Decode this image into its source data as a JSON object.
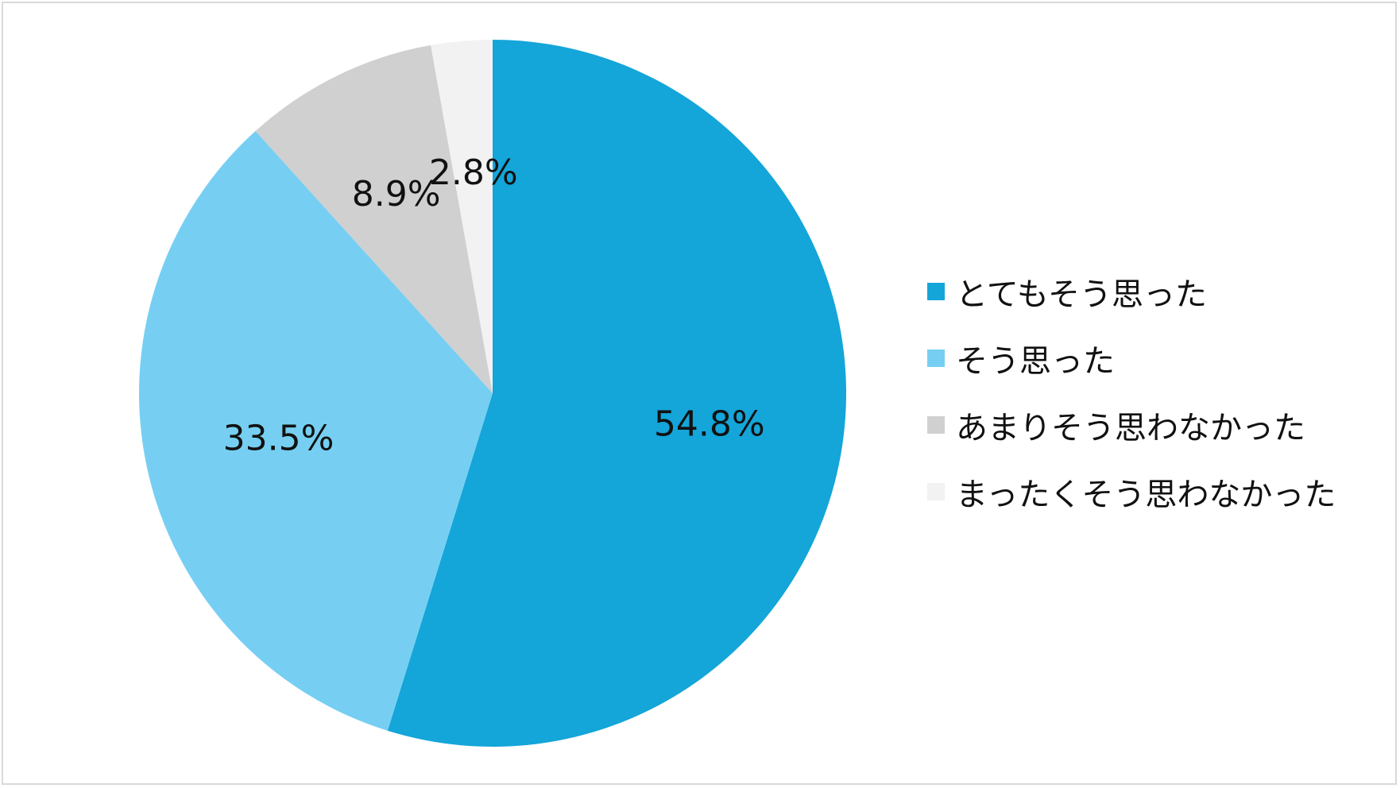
{
  "chart_data": {
    "type": "pie",
    "categories": [
      "とてもそう思った",
      "そう思った",
      "あまりそう思わなかった",
      "まったくそう思わなかった"
    ],
    "values": [
      54.8,
      33.5,
      8.9,
      2.8
    ],
    "data_labels": [
      "54.8%",
      "33.5%",
      "8.9%",
      "2.8%"
    ],
    "colors": [
      "#14a5d9",
      "#76cff2",
      "#d0d0d0",
      "#f2f2f2"
    ],
    "start_angle": "12 o'clock",
    "direction": "clockwise",
    "legend_position": "right"
  }
}
